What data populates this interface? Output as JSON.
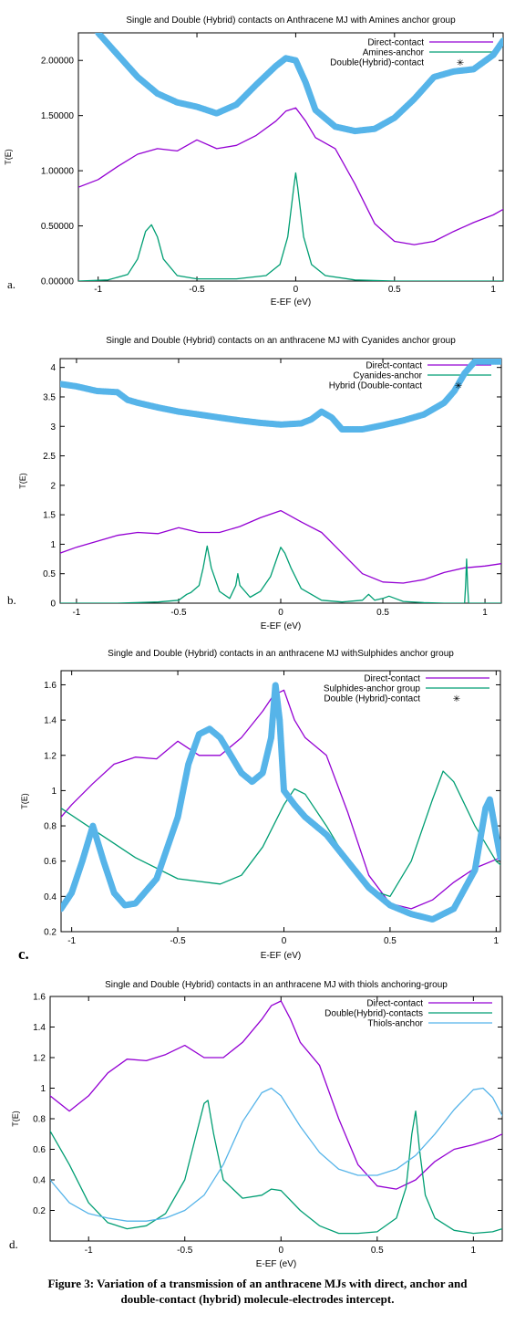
{
  "chart_data": [
    {
      "type": "line",
      "title": "Single and Double (Hybrid) contacts  on Anthracene MJ with Amines anchor group",
      "xlabel": "E-EF (eV)",
      "ylabel": "T(E)",
      "panel_label": "a.",
      "xlim": [
        -1.1,
        1.05
      ],
      "ylim": [
        0,
        2.25
      ],
      "xticks": [
        -1,
        -0.5,
        0,
        0.5,
        1
      ],
      "yticks": [
        0,
        0.5,
        1,
        1.5,
        2
      ],
      "ytick_labels": [
        "0.00000",
        "0.50000",
        "1.00000",
        "1.50000",
        "2.00000"
      ],
      "legend_position": "top-right",
      "series": [
        {
          "name": "Direct-contact",
          "color": "#9400d3",
          "style": "line",
          "x": [
            -1.1,
            -1.0,
            -0.9,
            -0.8,
            -0.7,
            -0.6,
            -0.5,
            -0.4,
            -0.3,
            -0.2,
            -0.1,
            -0.05,
            0.0,
            0.05,
            0.1,
            0.2,
            0.3,
            0.4,
            0.5,
            0.6,
            0.7,
            0.8,
            0.9,
            1.0,
            1.05
          ],
          "y": [
            0.85,
            0.92,
            1.04,
            1.15,
            1.2,
            1.18,
            1.28,
            1.2,
            1.23,
            1.32,
            1.45,
            1.54,
            1.57,
            1.45,
            1.3,
            1.2,
            0.88,
            0.52,
            0.36,
            0.33,
            0.36,
            0.45,
            0.53,
            0.6,
            0.65
          ]
        },
        {
          "name": "Amines-anchor",
          "color": "#009e73",
          "style": "line",
          "x": [
            -1.1,
            -0.95,
            -0.85,
            -0.8,
            -0.76,
            -0.73,
            -0.7,
            -0.67,
            -0.6,
            -0.5,
            -0.3,
            -0.15,
            -0.08,
            -0.04,
            -0.01,
            0.0,
            0.01,
            0.04,
            0.08,
            0.15,
            0.3,
            0.5,
            0.7,
            0.9,
            1.05
          ],
          "y": [
            0.0,
            0.01,
            0.06,
            0.2,
            0.45,
            0.51,
            0.4,
            0.2,
            0.05,
            0.02,
            0.02,
            0.05,
            0.15,
            0.4,
            0.85,
            0.98,
            0.85,
            0.4,
            0.15,
            0.05,
            0.01,
            0.0,
            0.0,
            0.0,
            0.0
          ]
        },
        {
          "name": "Double(Hybrid)-contact",
          "color": "#56b4e9",
          "style": "thick",
          "x": [
            -1.0,
            -0.9,
            -0.8,
            -0.7,
            -0.6,
            -0.5,
            -0.45,
            -0.4,
            -0.3,
            -0.2,
            -0.1,
            -0.05,
            0.0,
            0.05,
            0.1,
            0.2,
            0.3,
            0.4,
            0.5,
            0.6,
            0.7,
            0.8,
            0.9,
            1.0,
            1.05
          ],
          "y": [
            2.25,
            2.05,
            1.85,
            1.7,
            1.62,
            1.58,
            1.55,
            1.52,
            1.6,
            1.78,
            1.95,
            2.02,
            2.0,
            1.8,
            1.55,
            1.4,
            1.36,
            1.38,
            1.48,
            1.65,
            1.85,
            1.9,
            1.92,
            2.05,
            2.18
          ]
        }
      ]
    },
    {
      "type": "line",
      "title": "Single and Double (Hybrid) contacts on an anthracene MJ with Cyanides anchor group",
      "xlabel": "E-EF (eV)",
      "ylabel": "T(E)",
      "panel_label": "b.",
      "xlim": [
        -1.08,
        1.08
      ],
      "ylim": [
        0,
        4.15
      ],
      "xticks": [
        -1,
        -0.5,
        0,
        0.5,
        1
      ],
      "yticks": [
        0,
        0.5,
        1,
        1.5,
        2,
        2.5,
        3,
        3.5,
        4
      ],
      "ytick_labels": [
        "0",
        "0.5",
        "1",
        "1.5",
        "2",
        "2.5",
        "3",
        "3.5",
        "4"
      ],
      "legend_position": "top-right",
      "series": [
        {
          "name": "Direct-contact",
          "color": "#9400d3",
          "style": "line",
          "x": [
            -1.08,
            -1.0,
            -0.9,
            -0.8,
            -0.7,
            -0.6,
            -0.5,
            -0.4,
            -0.3,
            -0.2,
            -0.1,
            0.0,
            0.1,
            0.2,
            0.3,
            0.4,
            0.5,
            0.6,
            0.7,
            0.8,
            0.9,
            1.0,
            1.08
          ],
          "y": [
            0.85,
            0.95,
            1.05,
            1.15,
            1.2,
            1.18,
            1.28,
            1.2,
            1.2,
            1.3,
            1.45,
            1.57,
            1.38,
            1.2,
            0.85,
            0.5,
            0.36,
            0.34,
            0.4,
            0.52,
            0.6,
            0.63,
            0.67
          ]
        },
        {
          "name": "Cyanides-anchor",
          "color": "#009e73",
          "style": "line",
          "x": [
            -1.08,
            -0.8,
            -0.6,
            -0.5,
            -0.46,
            -0.44,
            -0.4,
            -0.38,
            -0.36,
            -0.34,
            -0.3,
            -0.25,
            -0.22,
            -0.21,
            -0.2,
            -0.15,
            -0.1,
            -0.05,
            -0.02,
            0.0,
            0.02,
            0.05,
            0.1,
            0.2,
            0.3,
            0.4,
            0.43,
            0.46,
            0.5,
            0.53,
            0.56,
            0.6,
            0.7,
            0.8,
            0.9,
            0.905,
            0.91,
            0.915,
            0.92,
            1.0,
            1.08
          ],
          "y": [
            0.0,
            0.0,
            0.02,
            0.05,
            0.15,
            0.18,
            0.3,
            0.6,
            0.97,
            0.6,
            0.2,
            0.08,
            0.3,
            0.5,
            0.3,
            0.1,
            0.2,
            0.45,
            0.75,
            0.95,
            0.85,
            0.6,
            0.25,
            0.05,
            0.02,
            0.05,
            0.15,
            0.05,
            0.08,
            0.12,
            0.08,
            0.03,
            0.01,
            0.0,
            0.0,
            0.3,
            0.75,
            0.3,
            0.0,
            0.0,
            0.0
          ]
        },
        {
          "name": "Hybrid (Double-contact",
          "color": "#56b4e9",
          "style": "thick",
          "x": [
            -1.08,
            -1.0,
            -0.9,
            -0.8,
            -0.75,
            -0.7,
            -0.6,
            -0.5,
            -0.4,
            -0.3,
            -0.2,
            -0.1,
            0.0,
            0.1,
            0.15,
            0.2,
            0.25,
            0.3,
            0.4,
            0.5,
            0.6,
            0.7,
            0.8,
            0.85,
            0.9,
            0.95,
            1.08
          ],
          "y": [
            3.72,
            3.68,
            3.6,
            3.58,
            3.45,
            3.4,
            3.32,
            3.25,
            3.2,
            3.15,
            3.1,
            3.06,
            3.03,
            3.05,
            3.12,
            3.25,
            3.15,
            2.95,
            2.95,
            3.02,
            3.1,
            3.2,
            3.4,
            3.6,
            3.9,
            4.1,
            4.1
          ]
        }
      ]
    },
    {
      "type": "line",
      "title": "Single and Double (Hybrid) contacts in an anthracene MJ withSulphides anchor group",
      "xlabel": "E-EF (eV)",
      "ylabel": "T(E)",
      "panel_label": "c.",
      "xlim": [
        -1.05,
        1.02
      ],
      "ylim": [
        0.2,
        1.68
      ],
      "xticks": [
        -1,
        -0.5,
        0,
        0.5,
        1
      ],
      "yticks": [
        0.2,
        0.4,
        0.6,
        0.8,
        1,
        1.2,
        1.4,
        1.6
      ],
      "ytick_labels": [
        "0.2",
        "0.4",
        "0.6",
        "0.8",
        "1",
        "1.2",
        "1.4",
        "1.6"
      ],
      "legend_position": "top-right",
      "series": [
        {
          "name": "Direct-contact",
          "color": "#9400d3",
          "style": "line",
          "x": [
            -1.05,
            -1.0,
            -0.9,
            -0.8,
            -0.7,
            -0.6,
            -0.5,
            -0.4,
            -0.3,
            -0.2,
            -0.1,
            -0.05,
            0.0,
            0.05,
            0.1,
            0.2,
            0.3,
            0.4,
            0.5,
            0.6,
            0.7,
            0.8,
            0.9,
            1.0,
            1.02
          ],
          "y": [
            0.85,
            0.92,
            1.04,
            1.15,
            1.19,
            1.18,
            1.28,
            1.2,
            1.2,
            1.3,
            1.45,
            1.54,
            1.57,
            1.4,
            1.3,
            1.2,
            0.88,
            0.52,
            0.36,
            0.33,
            0.38,
            0.48,
            0.56,
            0.61,
            0.62
          ]
        },
        {
          "name": "Sulphides-anchor group",
          "color": "#009e73",
          "style": "line",
          "x": [
            -1.05,
            -0.9,
            -0.7,
            -0.5,
            -0.3,
            -0.2,
            -0.1,
            0.0,
            0.05,
            0.1,
            0.2,
            0.3,
            0.4,
            0.5,
            0.6,
            0.7,
            0.75,
            0.8,
            0.9,
            1.0,
            1.02
          ],
          "y": [
            0.9,
            0.78,
            0.62,
            0.5,
            0.47,
            0.52,
            0.68,
            0.92,
            1.01,
            0.98,
            0.8,
            0.6,
            0.44,
            0.4,
            0.6,
            0.95,
            1.11,
            1.05,
            0.8,
            0.6,
            0.58
          ]
        },
        {
          "name": "Double (Hybrid)-contact",
          "color": "#56b4e9",
          "style": "thick",
          "x": [
            -1.05,
            -1.0,
            -0.95,
            -0.9,
            -0.85,
            -0.8,
            -0.75,
            -0.7,
            -0.6,
            -0.5,
            -0.45,
            -0.4,
            -0.35,
            -0.3,
            -0.2,
            -0.15,
            -0.1,
            -0.06,
            -0.04,
            -0.02,
            0.0,
            0.05,
            0.1,
            0.2,
            0.3,
            0.4,
            0.5,
            0.6,
            0.7,
            0.8,
            0.9,
            0.95,
            0.97,
            1.0,
            1.02
          ],
          "y": [
            0.33,
            0.42,
            0.6,
            0.8,
            0.6,
            0.42,
            0.35,
            0.36,
            0.5,
            0.85,
            1.15,
            1.32,
            1.35,
            1.3,
            1.1,
            1.05,
            1.1,
            1.3,
            1.6,
            1.4,
            1.0,
            0.92,
            0.85,
            0.75,
            0.6,
            0.45,
            0.35,
            0.3,
            0.27,
            0.33,
            0.55,
            0.9,
            0.95,
            0.75,
            0.62
          ]
        }
      ]
    },
    {
      "type": "line",
      "title": "Single and Double (Hybrid) contacts in an anthracene MJ with thiols anchoring-group",
      "xlabel": "E-EF (eV)",
      "ylabel": "T(E)",
      "panel_label": "d.",
      "xlim": [
        -1.2,
        1.15
      ],
      "ylim": [
        0,
        1.6
      ],
      "xticks": [
        -1,
        -0.5,
        0,
        0.5,
        1
      ],
      "yticks": [
        0.2,
        0.4,
        0.6,
        0.8,
        1,
        1.2,
        1.4,
        1.6
      ],
      "ytick_labels": [
        "0.2",
        "0.4",
        "0.6",
        "0.8",
        "1",
        "1.2",
        "1.4",
        "1.6"
      ],
      "legend_position": "top-right",
      "series": [
        {
          "name": "Direct-contact",
          "color": "#9400d3",
          "style": "line",
          "x": [
            -1.2,
            -1.1,
            -1.0,
            -0.9,
            -0.8,
            -0.7,
            -0.6,
            -0.5,
            -0.4,
            -0.3,
            -0.2,
            -0.1,
            -0.05,
            0.0,
            0.05,
            0.1,
            0.2,
            0.3,
            0.4,
            0.5,
            0.6,
            0.7,
            0.8,
            0.9,
            1.0,
            1.1,
            1.15
          ],
          "y": [
            0.95,
            0.85,
            0.95,
            1.1,
            1.19,
            1.18,
            1.22,
            1.28,
            1.2,
            1.2,
            1.3,
            1.45,
            1.54,
            1.57,
            1.45,
            1.3,
            1.15,
            0.8,
            0.5,
            0.36,
            0.34,
            0.4,
            0.52,
            0.6,
            0.63,
            0.67,
            0.7
          ]
        },
        {
          "name": "Double(Hybrid)-contacts",
          "color": "#009e73",
          "style": "line",
          "x": [
            -1.2,
            -1.1,
            -1.0,
            -0.9,
            -0.8,
            -0.7,
            -0.6,
            -0.5,
            -0.45,
            -0.4,
            -0.38,
            -0.35,
            -0.3,
            -0.2,
            -0.1,
            -0.05,
            0.0,
            0.1,
            0.2,
            0.3,
            0.4,
            0.5,
            0.6,
            0.65,
            0.68,
            0.7,
            0.72,
            0.75,
            0.8,
            0.9,
            1.0,
            1.1,
            1.15
          ],
          "y": [
            0.72,
            0.5,
            0.25,
            0.12,
            0.08,
            0.1,
            0.18,
            0.4,
            0.65,
            0.9,
            0.92,
            0.7,
            0.4,
            0.28,
            0.3,
            0.34,
            0.33,
            0.2,
            0.1,
            0.05,
            0.05,
            0.06,
            0.15,
            0.35,
            0.7,
            0.85,
            0.6,
            0.3,
            0.15,
            0.07,
            0.05,
            0.06,
            0.08
          ]
        },
        {
          "name": "Thiols-anchor",
          "color": "#56b4e9",
          "style": "line",
          "x": [
            -1.2,
            -1.1,
            -1.0,
            -0.9,
            -0.8,
            -0.7,
            -0.6,
            -0.5,
            -0.4,
            -0.3,
            -0.2,
            -0.1,
            -0.05,
            0.0,
            0.1,
            0.2,
            0.3,
            0.4,
            0.5,
            0.6,
            0.7,
            0.8,
            0.9,
            1.0,
            1.05,
            1.1,
            1.15
          ],
          "y": [
            0.4,
            0.25,
            0.18,
            0.15,
            0.13,
            0.13,
            0.15,
            0.2,
            0.3,
            0.5,
            0.78,
            0.97,
            1.0,
            0.95,
            0.75,
            0.58,
            0.47,
            0.43,
            0.43,
            0.47,
            0.56,
            0.7,
            0.86,
            0.99,
            1.0,
            0.94,
            0.82
          ]
        }
      ]
    }
  ],
  "caption": {
    "line1": "Figure 3: Variation of a transmission of an anthracene MJs with direct, anchor and",
    "line2": "double-contact (hybrid) molecule-electrodes intercept."
  }
}
